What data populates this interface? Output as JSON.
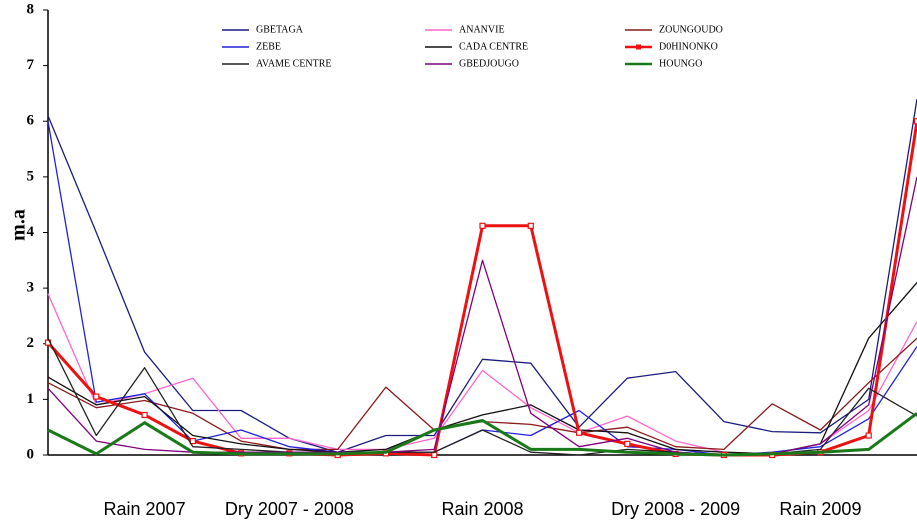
{
  "chart_data": {
    "type": "line",
    "y_label": "m.a",
    "categories": [
      null,
      null,
      "Rain 2007",
      null,
      null,
      "Dry 2007 - 2008",
      null,
      null,
      null,
      "Rain 2008",
      null,
      null,
      null,
      "Dry 2008 - 2009",
      null,
      null,
      "Rain 2009",
      null,
      null
    ],
    "ylim": [
      0,
      8
    ],
    "yticks": [
      0,
      1,
      2,
      3,
      4,
      5,
      6,
      7,
      8
    ],
    "grid": false,
    "series": [
      {
        "name": "GBETAGA",
        "color": "#1c1c80",
        "values": [
          6.1,
          4.0,
          1.85,
          0.8,
          0.8,
          0.3,
          0.05,
          0.35,
          0.35,
          1.72,
          1.65,
          0.5,
          1.38,
          1.5,
          0.6,
          0.42,
          0.4,
          1.0,
          6.4
        ]
      },
      {
        "name": "ANANVIE",
        "color": "#ff66cc",
        "values": [
          2.9,
          0.9,
          1.1,
          1.38,
          0.3,
          0.3,
          0.1,
          0.1,
          0.3,
          1.52,
          0.85,
          0.4,
          0.7,
          0.25,
          0.05,
          0.02,
          0.2,
          0.8,
          2.4
        ]
      },
      {
        "name": "ZOUNGOUDO",
        "color": "#8b1a1a",
        "values": [
          1.3,
          0.85,
          0.98,
          0.75,
          0.25,
          0.1,
          0.1,
          1.22,
          0.45,
          0.6,
          0.55,
          0.4,
          0.5,
          0.15,
          0.1,
          0.92,
          0.45,
          1.3,
          2.1
        ]
      },
      {
        "name": "ZEBE",
        "color": "#2222dd",
        "values": [
          6.0,
          0.95,
          1.1,
          0.25,
          0.45,
          0.15,
          0.05,
          0.05,
          0.05,
          0.45,
          0.35,
          0.8,
          0.15,
          0.1,
          0.0,
          0.05,
          0.15,
          0.65,
          1.95
        ]
      },
      {
        "name": "CADA CENTRE",
        "color": "#111111",
        "values": [
          1.4,
          0.9,
          1.05,
          0.35,
          0.2,
          0.1,
          0.05,
          0.1,
          0.45,
          0.72,
          0.9,
          0.45,
          0.4,
          0.1,
          0.05,
          0.02,
          0.2,
          2.1,
          3.1
        ]
      },
      {
        "name": "D0HINONKO",
        "color": "#ee1111",
        "marker": "square",
        "width": 3,
        "values": [
          2.02,
          1.05,
          0.72,
          0.25,
          0.03,
          0.03,
          0.0,
          0.03,
          0.0,
          4.12,
          4.12,
          0.4,
          0.2,
          0.02,
          0.0,
          0.0,
          0.05,
          0.35,
          6.0
        ]
      },
      {
        "name": "AVAME CENTRE",
        "color": "#222222",
        "values": [
          2.1,
          0.35,
          1.57,
          0.15,
          0.1,
          0.05,
          0.05,
          0.05,
          0.05,
          0.45,
          0.05,
          0.0,
          0.1,
          0.05,
          0.0,
          0.02,
          0.1,
          1.2,
          0.7
        ]
      },
      {
        "name": "GBEDJOUGO",
        "color": "#800080",
        "values": [
          1.2,
          0.25,
          0.1,
          0.05,
          0.05,
          0.05,
          0.05,
          0.05,
          0.1,
          3.5,
          0.75,
          0.15,
          0.3,
          0.05,
          0.0,
          0.02,
          0.2,
          0.9,
          5.0
        ]
      },
      {
        "name": "HOUNGO",
        "color": "#1a7a1a",
        "width": 3,
        "values": [
          0.45,
          0.02,
          0.58,
          0.05,
          0.02,
          0.02,
          0.02,
          0.05,
          0.45,
          0.62,
          0.1,
          0.1,
          0.05,
          0.02,
          0.0,
          0.02,
          0.05,
          0.1,
          0.75
        ]
      }
    ]
  }
}
